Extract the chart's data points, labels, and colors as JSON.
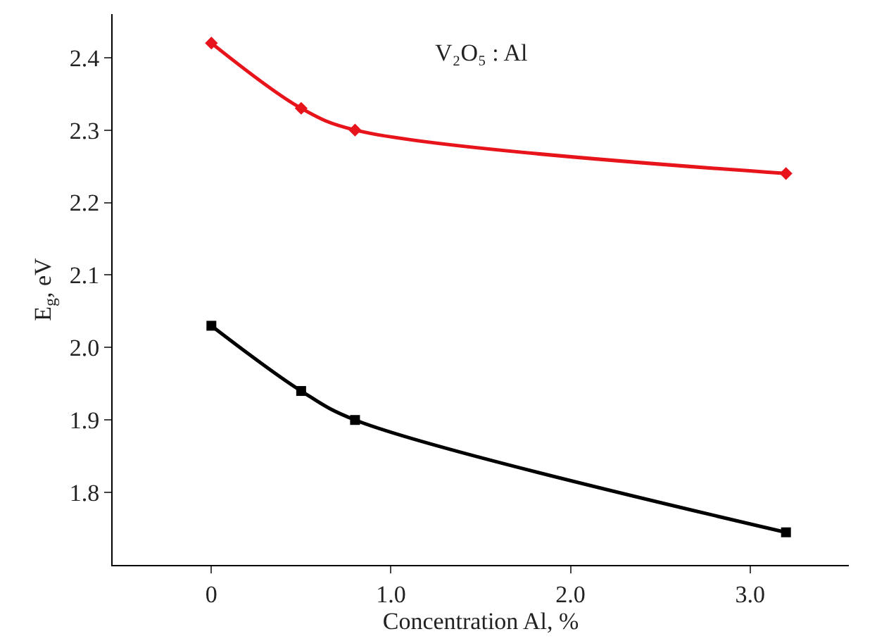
{
  "chart_data": {
    "type": "line",
    "xlabel": "Concentration Al, %",
    "ylabel": "E$_{g}$, eV",
    "annotations": [
      "V₂O₅ : Al"
    ],
    "x": [
      0,
      0.5,
      0.8,
      3.2
    ],
    "series": [
      {
        "color": "#e8141b",
        "values": [
          2.42,
          2.33,
          2.3,
          2.24
        ],
        "marker": "diamond"
      },
      {
        "color": "#000000",
        "values": [
          2.03,
          1.94,
          1.9,
          1.745
        ],
        "marker": "square"
      }
    ],
    "xlim": [
      -0.55,
      3.55
    ],
    "xticks": [
      0,
      {
        "value": 1,
        "label": "1.0"
      },
      {
        "value": 2,
        "label": "2.0"
      },
      {
        "value": 3,
        "label": "3.0"
      }
    ],
    "ylim": [
      1.7,
      2.46
    ],
    "yticks": [
      1.8,
      1.9,
      {
        "value": 2,
        "label": "2.0"
      },
      2.1,
      2.2,
      2.3,
      2.4
    ],
    "legend": false
  }
}
